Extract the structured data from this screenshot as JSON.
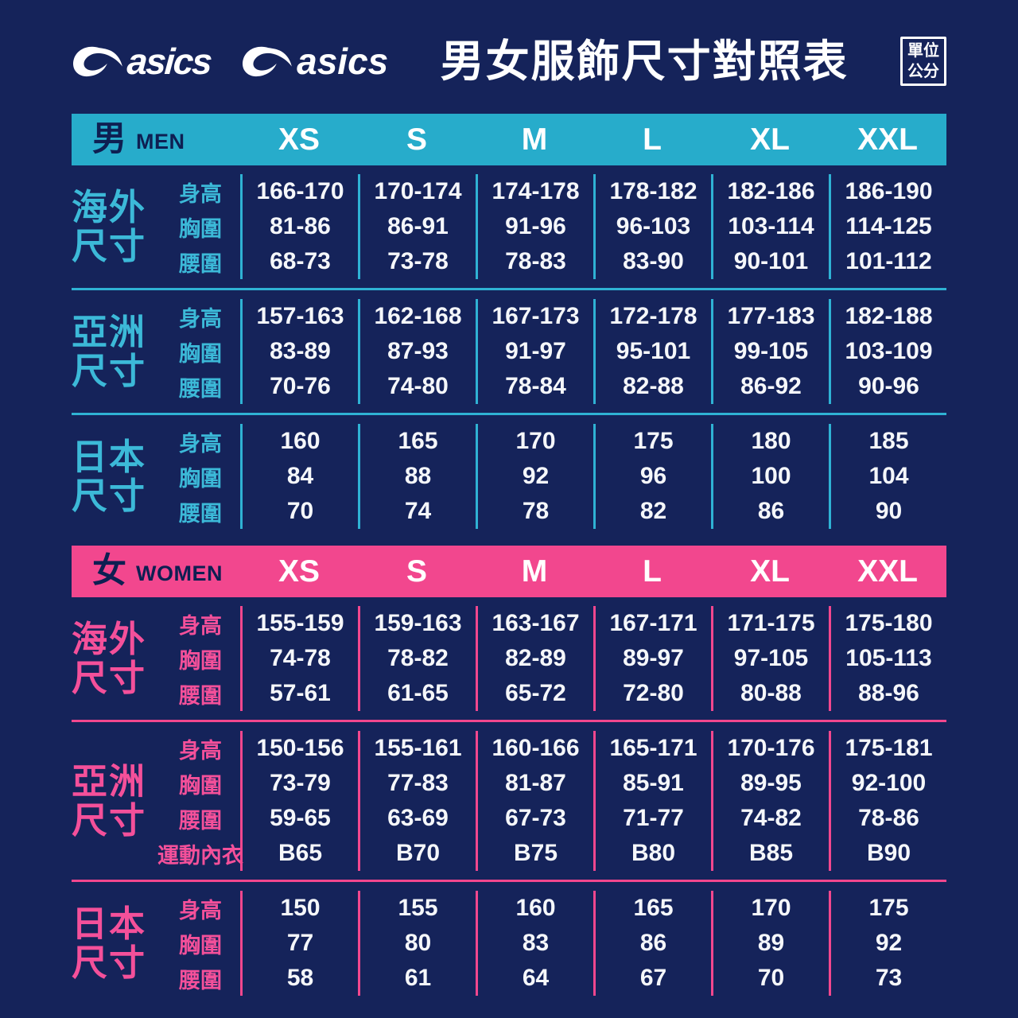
{
  "page": {
    "logo_text": "asics",
    "title": "男女服飾尺寸對照表",
    "unit_box": {
      "line1": "單位",
      "line2": "公分"
    }
  },
  "colors": {
    "background": "#15235A",
    "men_accent": "#27ACCB",
    "men_text": "#3CB9D8",
    "men_line": "#2FB2D4",
    "women_accent": "#F2478E",
    "women_text": "#F4509A",
    "bar_text": "#0E1F52",
    "value_text": "#F5F7FA"
  },
  "chart_data": {
    "type": "table",
    "title": "男女服飾尺寸對照表",
    "unit": "公分",
    "columns": [
      "XS",
      "S",
      "M",
      "L",
      "XL",
      "XXL"
    ],
    "tables": [
      {
        "id": "men",
        "gender_zh": "男",
        "gender_en": "MEN",
        "sections": [
          {
            "name": "海外尺寸",
            "name_lines": [
              "海外",
              "尺寸"
            ],
            "rows": [
              {
                "label": "身高",
                "values": [
                  "166-170",
                  "170-174",
                  "174-178",
                  "178-182",
                  "182-186",
                  "186-190"
                ]
              },
              {
                "label": "胸圍",
                "values": [
                  "81-86",
                  "86-91",
                  "91-96",
                  "96-103",
                  "103-114",
                  "114-125"
                ]
              },
              {
                "label": "腰圍",
                "values": [
                  "68-73",
                  "73-78",
                  "78-83",
                  "83-90",
                  "90-101",
                  "101-112"
                ]
              }
            ]
          },
          {
            "name": "亞洲尺寸",
            "name_lines": [
              "亞洲",
              "尺寸"
            ],
            "rows": [
              {
                "label": "身高",
                "values": [
                  "157-163",
                  "162-168",
                  "167-173",
                  "172-178",
                  "177-183",
                  "182-188"
                ]
              },
              {
                "label": "胸圍",
                "values": [
                  "83-89",
                  "87-93",
                  "91-97",
                  "95-101",
                  "99-105",
                  "103-109"
                ]
              },
              {
                "label": "腰圍",
                "values": [
                  "70-76",
                  "74-80",
                  "78-84",
                  "82-88",
                  "86-92",
                  "90-96"
                ]
              }
            ]
          },
          {
            "name": "日本尺寸",
            "name_lines": [
              "日本",
              "尺寸"
            ],
            "rows": [
              {
                "label": "身高",
                "values": [
                  "160",
                  "165",
                  "170",
                  "175",
                  "180",
                  "185"
                ]
              },
              {
                "label": "胸圍",
                "values": [
                  "84",
                  "88",
                  "92",
                  "96",
                  "100",
                  "104"
                ]
              },
              {
                "label": "腰圍",
                "values": [
                  "70",
                  "74",
                  "78",
                  "82",
                  "86",
                  "90"
                ]
              }
            ]
          }
        ]
      },
      {
        "id": "women",
        "gender_zh": "女",
        "gender_en": "WOMEN",
        "sections": [
          {
            "name": "海外尺寸",
            "name_lines": [
              "海外",
              "尺寸"
            ],
            "rows": [
              {
                "label": "身高",
                "values": [
                  "155-159",
                  "159-163",
                  "163-167",
                  "167-171",
                  "171-175",
                  "175-180"
                ]
              },
              {
                "label": "胸圍",
                "values": [
                  "74-78",
                  "78-82",
                  "82-89",
                  "89-97",
                  "97-105",
                  "105-113"
                ]
              },
              {
                "label": "腰圍",
                "values": [
                  "57-61",
                  "61-65",
                  "65-72",
                  "72-80",
                  "80-88",
                  "88-96"
                ]
              }
            ]
          },
          {
            "name": "亞洲尺寸",
            "name_lines": [
              "亞洲",
              "尺寸"
            ],
            "rows": [
              {
                "label": "身高",
                "values": [
                  "150-156",
                  "155-161",
                  "160-166",
                  "165-171",
                  "170-176",
                  "175-181"
                ]
              },
              {
                "label": "胸圍",
                "values": [
                  "73-79",
                  "77-83",
                  "81-87",
                  "85-91",
                  "89-95",
                  "92-100"
                ]
              },
              {
                "label": "腰圍",
                "values": [
                  "59-65",
                  "63-69",
                  "67-73",
                  "71-77",
                  "74-82",
                  "78-86"
                ]
              },
              {
                "label": "運動內衣",
                "values": [
                  "B65",
                  "B70",
                  "B75",
                  "B80",
                  "B85",
                  "B90"
                ]
              }
            ]
          },
          {
            "name": "日本尺寸",
            "name_lines": [
              "日本",
              "尺寸"
            ],
            "rows": [
              {
                "label": "身高",
                "values": [
                  "150",
                  "155",
                  "160",
                  "165",
                  "170",
                  "175"
                ]
              },
              {
                "label": "胸圍",
                "values": [
                  "77",
                  "80",
                  "83",
                  "86",
                  "89",
                  "92"
                ]
              },
              {
                "label": "腰圍",
                "values": [
                  "58",
                  "61",
                  "64",
                  "67",
                  "70",
                  "73"
                ]
              }
            ]
          }
        ]
      }
    ]
  }
}
